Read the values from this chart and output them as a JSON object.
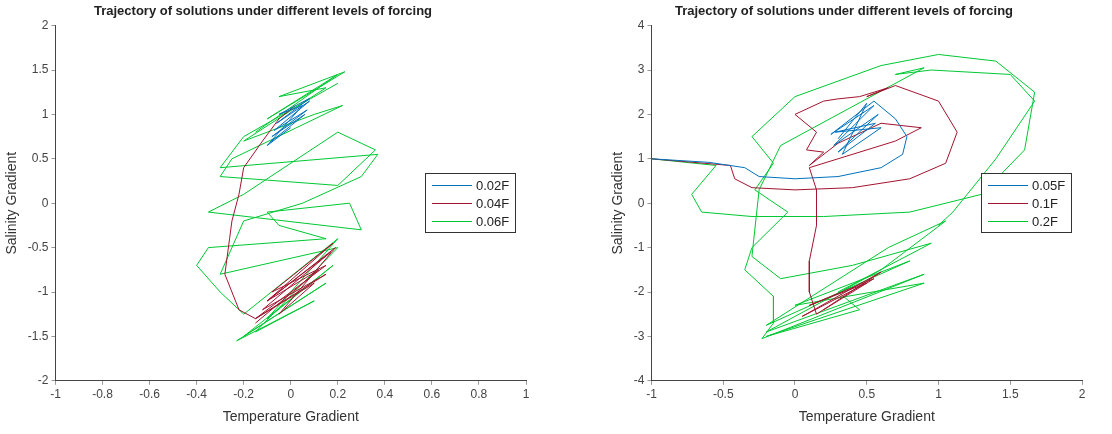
{
  "chart_data": [
    {
      "type": "line",
      "title": "Trajectory of solutions under different levels of forcing",
      "xlabel": "Temperature Gradient",
      "ylabel": "Salinity Gradient",
      "xlim": [
        -1,
        1
      ],
      "xticks": [
        -1,
        -0.8,
        -0.6,
        -0.4,
        -0.2,
        0,
        0.2,
        0.4,
        0.6,
        0.8,
        1
      ],
      "ylim": [
        -2,
        2
      ],
      "yticks": [
        -2,
        -1.5,
        -1,
        -0.5,
        0,
        0.5,
        1,
        1.5,
        2
      ],
      "grid": false,
      "legend": "right",
      "marker": "none",
      "line_style": "solid",
      "series": [
        {
          "name": "0.02F",
          "color": "#0072bd",
          "x": [
            -0.09,
            0.06,
            -0.08,
            0.07,
            -0.07,
            0.08,
            -0.06,
            0.08,
            -0.05,
            0.05,
            -0.1,
            0.0
          ],
          "values": [
            0.68,
            1.0,
            0.75,
            1.05,
            0.82,
            1.15,
            0.9,
            1.18,
            1.0,
            1.1,
            0.65,
            0.85
          ]
        },
        {
          "name": "0.04F",
          "color": "#a2142f",
          "x": [
            0.02,
            -0.05,
            -0.12,
            -0.2,
            -0.22,
            -0.25,
            -0.26,
            -0.27,
            -0.28,
            -0.25,
            -0.22,
            -0.15,
            0.15,
            -0.12,
            0.17,
            -0.1,
            0.18,
            -0.08,
            0.15,
            -0.15,
            0.1,
            -0.05,
            0.19,
            -0.1,
            0.12,
            -0.15
          ],
          "values": [
            1.1,
            0.95,
            0.7,
            0.4,
            0.1,
            -0.2,
            -0.4,
            -0.6,
            -0.8,
            -1.0,
            -1.2,
            -1.3,
            -0.8,
            -1.2,
            -0.55,
            -1.1,
            -0.45,
            -1.0,
            -0.7,
            -1.3,
            -0.9,
            -1.25,
            -0.5,
            -1.1,
            -0.75,
            -1.35
          ]
        },
        {
          "name": "0.06F",
          "color": "#00c832",
          "x": [
            -0.15,
            0.2,
            -0.1,
            0.23,
            -0.05,
            0.15,
            -0.2,
            0.1,
            0.22,
            -0.25,
            -0.3,
            0.2,
            0.36,
            0.2,
            -0.2,
            -0.35,
            0.3,
            0.25,
            -0.1,
            -0.05,
            0.15,
            -0.35,
            -0.4,
            -0.3,
            -0.2,
            0.2,
            -0.1,
            0.18,
            -0.2,
            0.15,
            -0.23,
            0.1,
            -0.15,
            0.2,
            -0.3,
            -0.2,
            0.05,
            0.3,
            0.37,
            -0.3,
            -0.2,
            0.2
          ],
          "values": [
            0.8,
            1.45,
            0.95,
            1.48,
            1.2,
            1.3,
            0.7,
            1.0,
            1.1,
            0.5,
            0.3,
            0.2,
            0.6,
            0.8,
            0.1,
            -0.1,
            -0.3,
            0.0,
            -0.1,
            -0.25,
            -0.4,
            -0.5,
            -0.7,
            -1.0,
            -1.25,
            -0.4,
            -1.3,
            -0.7,
            -1.5,
            -0.9,
            -1.55,
            -1.1,
            -1.45,
            -0.5,
            -0.8,
            -0.2,
            0.0,
            0.3,
            0.55,
            0.4,
            0.75,
            1.35
          ]
        }
      ]
    },
    {
      "type": "line",
      "title": "Trajectory of solutions under different levels of forcing",
      "xlabel": "Temperature Gradient",
      "ylabel": "Salinity Gradient",
      "xlim": [
        -1,
        2
      ],
      "xticks": [
        -1,
        -0.5,
        0,
        0.5,
        1,
        1.5,
        2
      ],
      "ylim": [
        -4,
        4
      ],
      "yticks": [
        -4,
        -3,
        -2,
        -1,
        0,
        1,
        2,
        3,
        4
      ],
      "grid": false,
      "legend": "right",
      "marker": "none",
      "line_style": "solid",
      "series": [
        {
          "name": "0.05F",
          "color": "#0072bd",
          "x": [
            -1,
            -0.6,
            -0.35,
            -0.25,
            0.0,
            0.3,
            0.6,
            0.75,
            0.78,
            0.7,
            0.55,
            0.25,
            0.55,
            0.27,
            0.58,
            0.3,
            0.56,
            0.28,
            0.6,
            0.33,
            0.5,
            0.3
          ],
          "values": [
            1.0,
            0.92,
            0.8,
            0.6,
            0.55,
            0.6,
            0.8,
            1.1,
            1.5,
            1.9,
            2.3,
            1.55,
            2.2,
            1.3,
            2.0,
            1.15,
            1.8,
            1.6,
            1.7,
            1.1,
            2.25,
            1.45
          ]
        },
        {
          "name": "0.1F",
          "color": "#a2142f",
          "x": [
            -1,
            -0.45,
            -0.42,
            -0.3,
            0.0,
            0.4,
            0.8,
            1.05,
            1.13,
            1.0,
            0.7,
            0.5,
            0.65,
            0.45,
            0.3,
            0.2,
            0.0,
            0.15,
            0.08,
            0.2,
            0.1,
            0.3,
            0.6,
            0.88,
            0.7,
            0.3,
            0.1,
            0.15,
            0.15,
            0.1,
            0.1,
            0.15,
            0.6,
            0.05,
            0.5,
            0.1,
            0.55,
            0.2
          ],
          "values": [
            1.0,
            0.85,
            0.55,
            0.35,
            0.3,
            0.35,
            0.55,
            0.9,
            1.6,
            2.3,
            2.65,
            2.4,
            2.6,
            2.4,
            2.35,
            2.3,
            2.0,
            1.6,
            1.2,
            1.15,
            0.85,
            1.35,
            1.8,
            1.7,
            1.4,
            1.0,
            0.8,
            0.3,
            -0.5,
            -1.3,
            -2.0,
            -2.5,
            -1.55,
            -2.55,
            -1.8,
            -2.3,
            -1.7,
            -2.4
          ]
        },
        {
          "name": "0.2F",
          "color": "#00c832",
          "x": [
            -1,
            -0.55,
            -0.72,
            -0.65,
            -0.3,
            0.2,
            0.8,
            1.3,
            1.6,
            1.67,
            1.4,
            1.0,
            0.6,
            0.0,
            -0.3,
            -0.15,
            -0.28,
            -0.05,
            -0.3,
            -0.35,
            -0.15,
            -0.15,
            -0.23,
            0.9,
            -0.2,
            0.6,
            1.05,
            0.65,
            -0.2,
            0.8,
            0.0,
            0.9,
            -0.2,
            0.45,
            0.3,
            0.95,
            0.4,
            -0.1,
            -0.3,
            -0.25,
            -0.1,
            0.3,
            0.9,
            0.7,
            0.95,
            1.5,
            1.67,
            1.4,
            1.2,
            1.1,
            1.0
          ],
          "values": [
            1.0,
            0.85,
            0.2,
            -0.2,
            -0.3,
            -0.3,
            -0.2,
            0.2,
            1.2,
            2.5,
            3.2,
            3.35,
            3.1,
            2.4,
            1.5,
            0.9,
            0.3,
            -0.2,
            -1.0,
            -1.5,
            -2.1,
            -2.7,
            -3.05,
            -1.6,
            -2.9,
            -1.5,
            -0.4,
            -1.0,
            -2.75,
            -1.3,
            -2.3,
            -1.8,
            -3.0,
            -2.4,
            -2.0,
            -0.9,
            -1.4,
            -1.7,
            -1.2,
            0.3,
            1.3,
            2.0,
            3.05,
            2.9,
            3.0,
            2.9,
            2.3,
            1.0,
            0.2,
            -0.2,
            -0.5
          ]
        }
      ]
    }
  ]
}
